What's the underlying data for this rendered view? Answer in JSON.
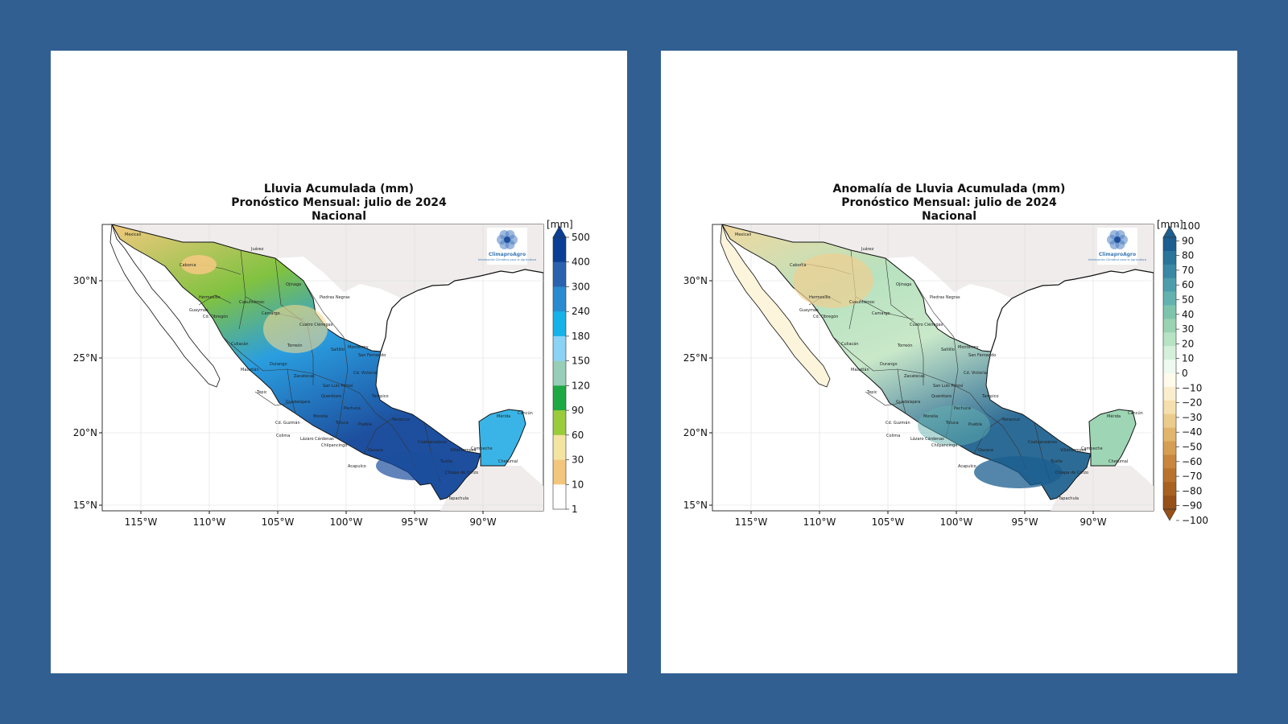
{
  "maps": [
    {
      "id": "left",
      "title_lines": [
        "Lluvia Acumulada (mm)",
        "Pronóstico Mensual: julio de 2024",
        "Nacional"
      ],
      "unit": "[mm]",
      "legend_ticks": [
        "500",
        "400",
        "300",
        "240",
        "180",
        "150",
        "120",
        "90",
        "60",
        "30",
        "10",
        "1"
      ],
      "legend_colors": [
        "#0b3f95",
        "#2a62ad",
        "#2a8bd0",
        "#14b3ea",
        "#8ad3f5",
        "#98cdb8",
        "#1ea844",
        "#9acb3a",
        "#f3e4a2",
        "#f3c67d",
        "#ffffff"
      ],
      "palette": {
        "north": "#f2c97f",
        "central": "#80c240",
        "west": "#2a9ee0",
        "south": "#1d4f9e",
        "baja": "#ffffff",
        "yucatan": "#3ab4e6"
      }
    },
    {
      "id": "right",
      "title_lines": [
        "Anomalía de Lluvia Acumulada (mm)",
        "Pronóstico Mensual: julio de 2024",
        "Nacional"
      ],
      "unit": "[mm]",
      "legend_ticks": [
        "100",
        "90",
        "80",
        "70",
        "60",
        "50",
        "40",
        "30",
        "20",
        "10",
        "0",
        "−10",
        "−20",
        "−30",
        "−40",
        "−50",
        "−60",
        "−70",
        "−80",
        "−90",
        "−100"
      ],
      "legend_colors": [
        "#1b5e8f",
        "#2a7599",
        "#3a88a3",
        "#4e9dad",
        "#63b2b0",
        "#7ec4ac",
        "#99d3b2",
        "#b7e3c4",
        "#d4f0da",
        "#eef9f0",
        "#fffbec",
        "#fbeecf",
        "#f5dfae",
        "#eccc8c",
        "#e2b56c",
        "#d69e52",
        "#c8873c",
        "#b9732c",
        "#a8611f",
        "#965018"
      ],
      "palette": {
        "north": "#f1d89f",
        "central": "#b7e2c0",
        "west": "#c9e8c9",
        "south": "#2c6b96",
        "baja": "#fdf4dc",
        "yucatan": "#9ed6b5"
      }
    }
  ],
  "axes": {
    "x_ticks": [
      "115°W",
      "110°W",
      "105°W",
      "100°W",
      "95°W",
      "90°W"
    ],
    "y_ticks": [
      "30°N",
      "25°N",
      "20°N",
      "15°N"
    ]
  },
  "cities": [
    "Mexicali",
    "Juárez",
    "Caborca",
    "Hermosillo",
    "Ojinaga",
    "Piedras Negras",
    "Guaymas",
    "Cd. Obregón",
    "Cuauhtémoc",
    "Camargo",
    "Cuatro Ciénegas",
    "Torreón",
    "Saltillo",
    "Monterrey",
    "San Fernando",
    "Culiacán",
    "Mazatlán",
    "Cd. Victoria",
    "Tepic",
    "Guadalajara",
    "Cd. Guzmán",
    "Morelia",
    "Toluca",
    "Puebla",
    "Veracruz",
    "Oaxaca",
    "Chilpancingo",
    "Tuxtla",
    "Chiapa de Corzo",
    "Tapachula",
    "Campeche",
    "Mérida",
    "Cancún",
    "Chetumal",
    "Villahermosa",
    "Zacatecas",
    "Durango",
    "Tampico",
    "Pachuca",
    "Querétaro",
    "Acapulco",
    "Lázaro Cárdenas",
    "Colima",
    "Coatzacoalcos",
    "San Luis Potosí"
  ],
  "logo": {
    "name": "ClimaproAgro",
    "sub": "Información Climática para la Agricultura"
  }
}
